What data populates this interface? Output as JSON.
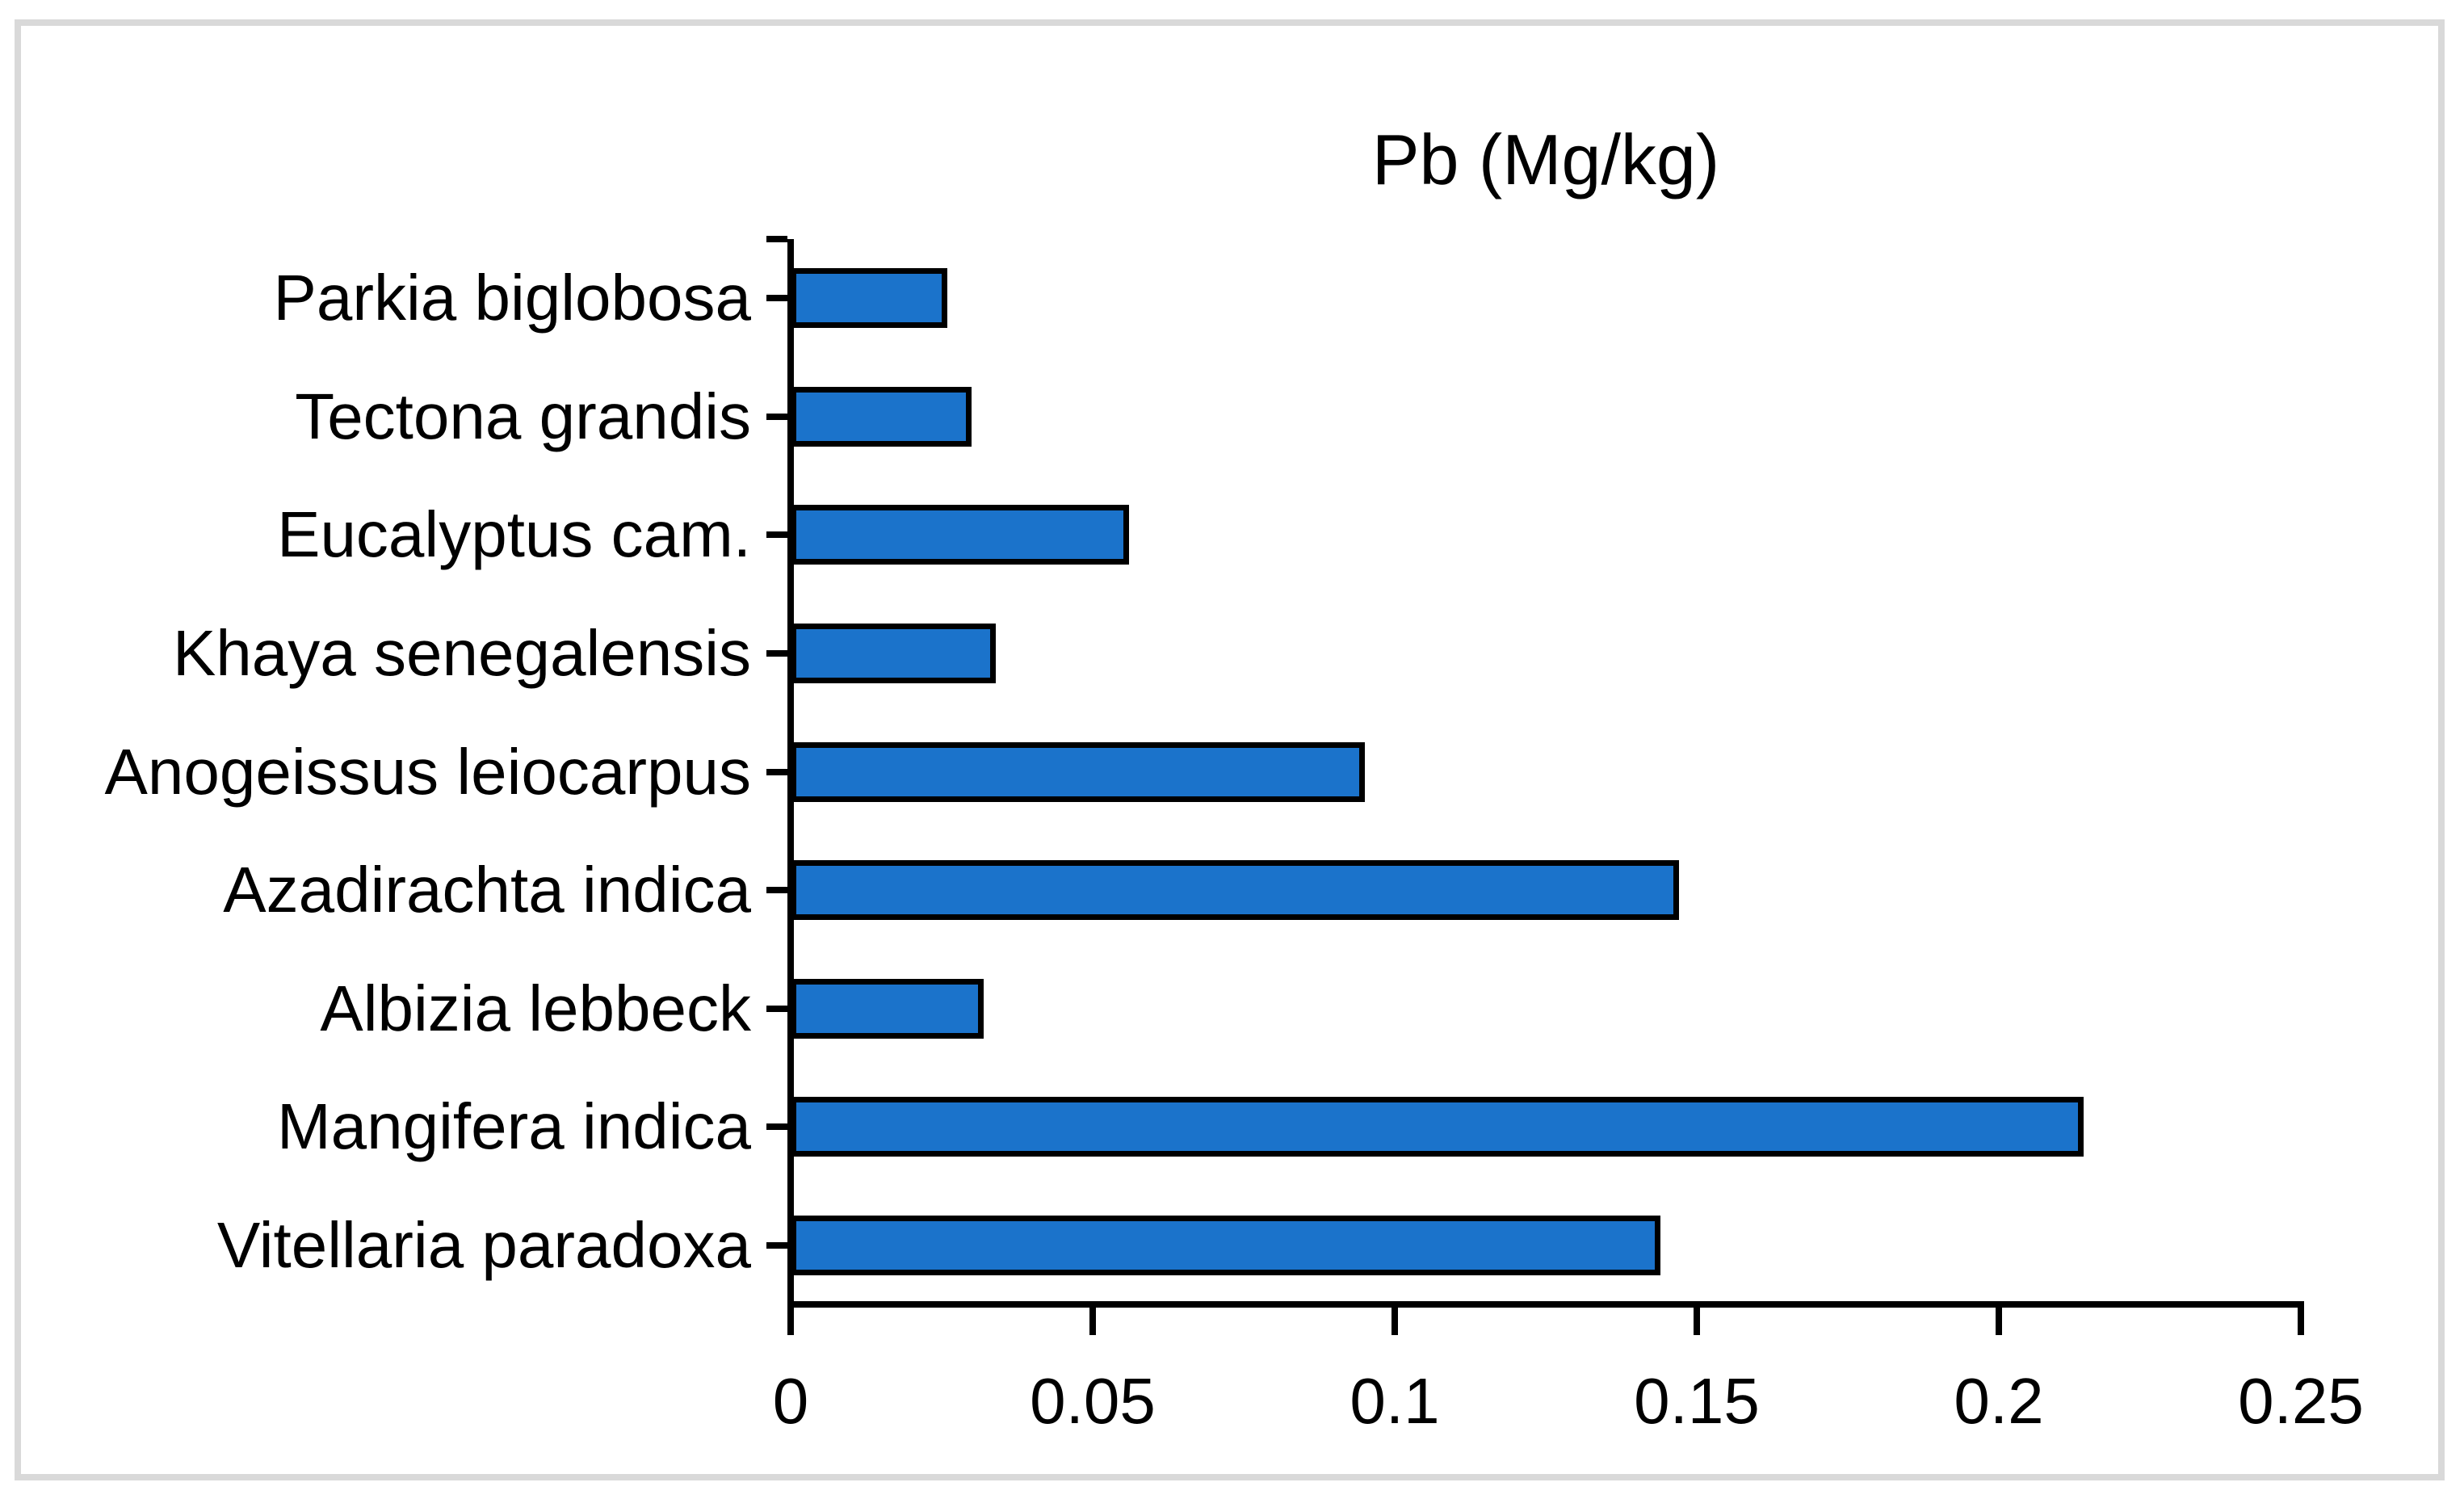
{
  "chart_data": {
    "type": "bar",
    "orientation": "horizontal",
    "title": "Pb (Mg/kg)",
    "categories": [
      "Parkia biglobosa",
      "Tectona grandis",
      "Eucalyptus cam.",
      "Khaya senegalensis",
      "Anogeissus leiocarpus",
      "Azadirachta indica",
      "Albizia lebbeck",
      "Mangifera indica",
      "Vitellaria paradoxa"
    ],
    "values": [
      0.026,
      0.03,
      0.056,
      0.034,
      0.095,
      0.147,
      0.032,
      0.214,
      0.144
    ],
    "xlim": [
      0,
      0.25
    ],
    "x_ticks": [
      0,
      0.05,
      0.1,
      0.15,
      0.2,
      0.25
    ],
    "x_tick_labels": [
      "0",
      "0.05",
      "0.1",
      "0.15",
      "0.2",
      "0.25"
    ],
    "xlabel": "",
    "ylabel": "",
    "grid": false,
    "legend": null,
    "bar_color": "#1B73CB",
    "bar_border_color": "#000000",
    "axis_color": "#000000",
    "text_color": "#000000",
    "frame_border_color": "#D9D9D9",
    "background_color": "#FFFFFF"
  }
}
